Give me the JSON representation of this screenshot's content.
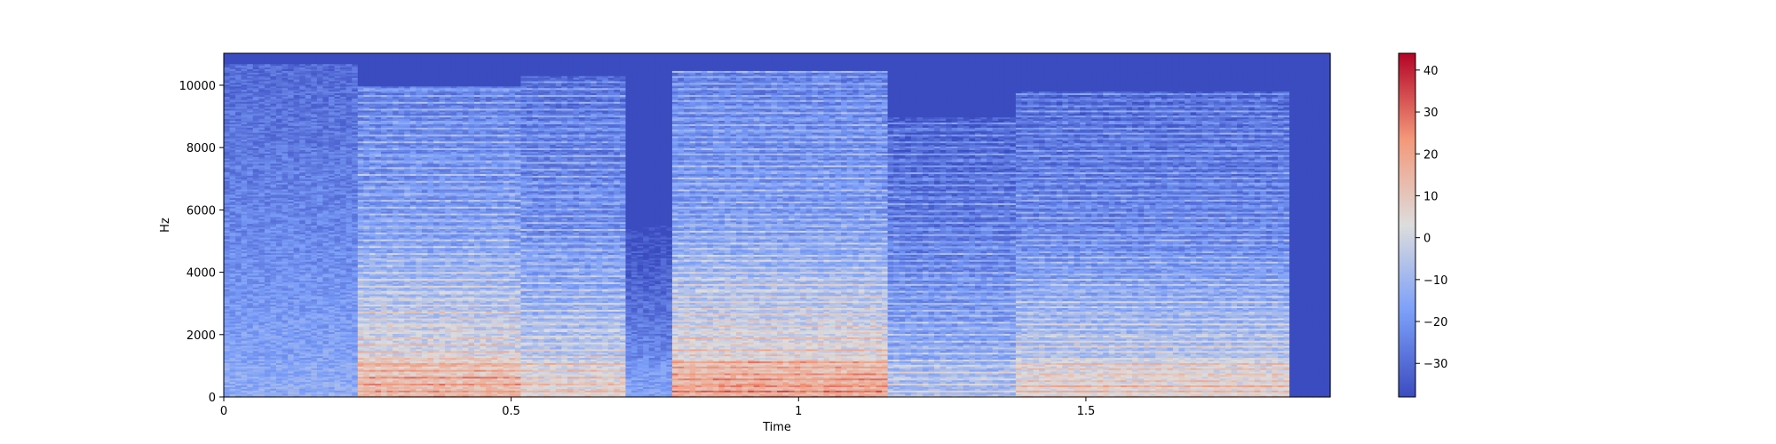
{
  "chart_data": {
    "type": "heatmap",
    "subtype": "spectrogram",
    "title": "",
    "xlabel": "Time",
    "ylabel": "Hz",
    "xlim": [
      0,
      1.925
    ],
    "ylim": [
      0,
      11025
    ],
    "x_ticks": [
      {
        "value": 0,
        "label": "0"
      },
      {
        "value": 0.5,
        "label": "0.5"
      },
      {
        "value": 1,
        "label": "1"
      },
      {
        "value": 1.5,
        "label": "1.5"
      }
    ],
    "y_ticks": [
      {
        "value": 0,
        "label": "0"
      },
      {
        "value": 2000,
        "label": "2000"
      },
      {
        "value": 4000,
        "label": "4000"
      },
      {
        "value": 6000,
        "label": "6000"
      },
      {
        "value": 8000,
        "label": "8000"
      },
      {
        "value": 10000,
        "label": "10000"
      }
    ],
    "colormap": "coolwarm",
    "colorbar": {
      "range": [
        -38,
        44
      ],
      "ticks": [
        {
          "value": 40,
          "label": "40"
        },
        {
          "value": 30,
          "label": "30"
        },
        {
          "value": 20,
          "label": "20"
        },
        {
          "value": 10,
          "label": "10"
        },
        {
          "value": 0,
          "label": "0"
        },
        {
          "value": -10,
          "label": "−10"
        },
        {
          "value": -20,
          "label": "−20"
        },
        {
          "value": -30,
          "label": "−30"
        }
      ]
    },
    "regions": [
      {
        "t": [
          0.0,
          0.23
        ],
        "f_top": 10700,
        "level": -16,
        "harmonic_f0": 0,
        "low_boost": 2
      },
      {
        "t": [
          0.23,
          0.52
        ],
        "f_top": 10000,
        "level": -6,
        "harmonic_f0": 210,
        "low_boost": 18
      },
      {
        "t": [
          0.52,
          0.7
        ],
        "f_top": 10300,
        "level": -10,
        "harmonic_f0": 215,
        "low_boost": 14
      },
      {
        "t": [
          0.7,
          0.78
        ],
        "f_top": 5500,
        "level": -24,
        "harmonic_f0": 0,
        "low_boost": 6
      },
      {
        "t": [
          0.78,
          1.16
        ],
        "f_top": 10500,
        "level": -6,
        "harmonic_f0": 190,
        "low_boost": 20
      },
      {
        "t": [
          1.16,
          1.38
        ],
        "f_top": 9000,
        "level": -14,
        "harmonic_f0": 200,
        "low_boost": 8
      },
      {
        "t": [
          1.38,
          1.85
        ],
        "f_top": 9800,
        "level": -12,
        "harmonic_f0": 180,
        "low_boost": 16
      }
    ],
    "grid": false,
    "legend": "none",
    "colorbar_position": "right"
  }
}
